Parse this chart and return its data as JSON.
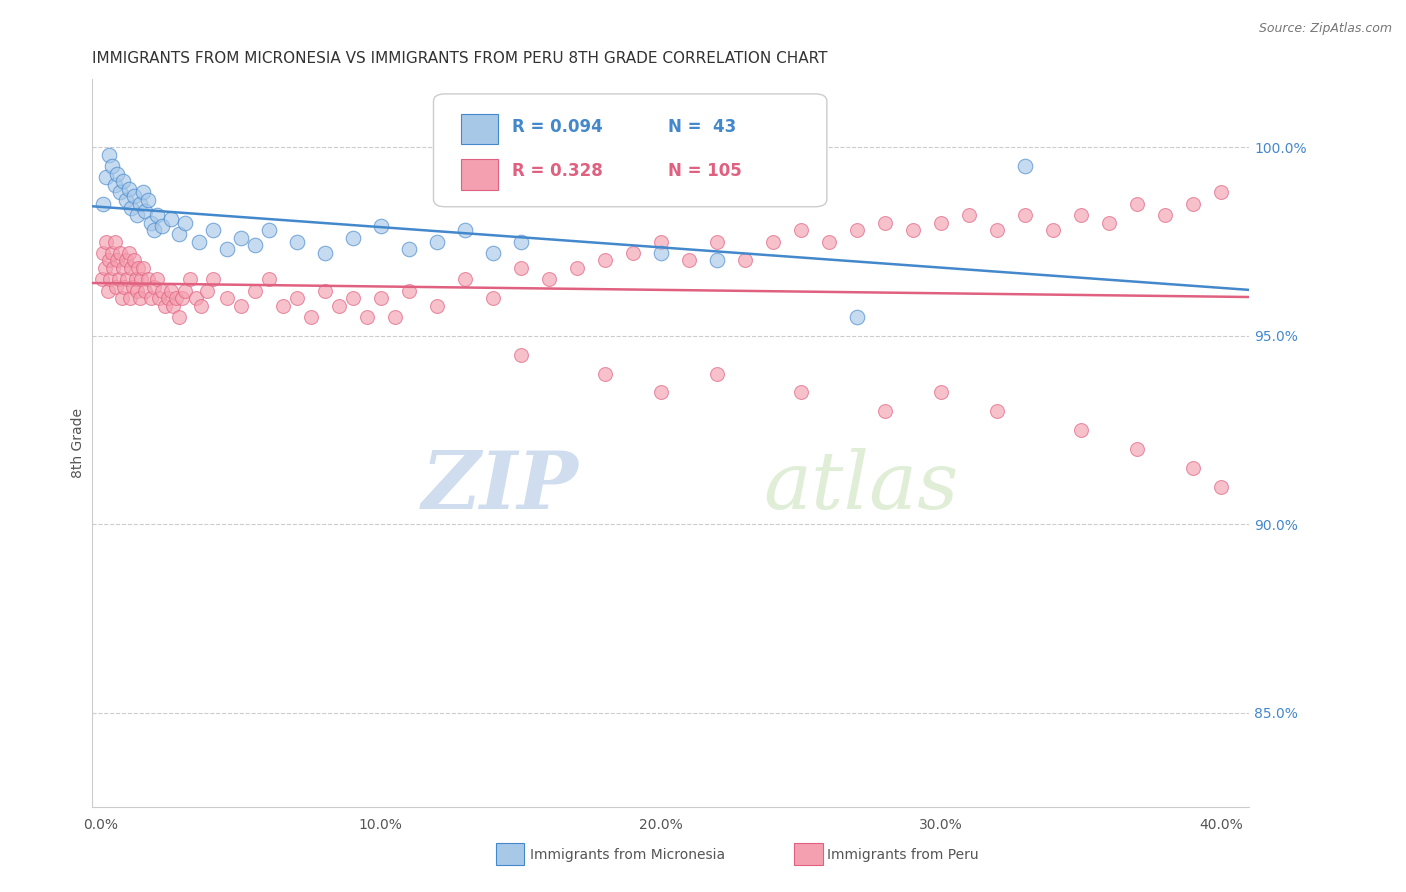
{
  "title": "IMMIGRANTS FROM MICRONESIA VS IMMIGRANTS FROM PERU 8TH GRADE CORRELATION CHART",
  "source": "Source: ZipAtlas.com",
  "ylabel": "8th Grade",
  "x_tick_labels": [
    "0.0%",
    "10.0%",
    "20.0%",
    "30.0%",
    "40.0%"
  ],
  "x_tick_positions": [
    0.0,
    10.0,
    20.0,
    30.0,
    40.0
  ],
  "y_tick_labels_right": [
    "85.0%",
    "90.0%",
    "95.0%",
    "100.0%"
  ],
  "y_tick_positions_right": [
    85.0,
    90.0,
    95.0,
    100.0
  ],
  "ylim": [
    82.5,
    101.8
  ],
  "xlim": [
    -0.3,
    41.0
  ],
  "legend_r1": "R = 0.094",
  "legend_n1": "N =  43",
  "legend_r2": "R = 0.328",
  "legend_n2": "N = 105",
  "color_micro": "#A8C8E8",
  "color_peru": "#F4A0B0",
  "color_line_micro": "#4488CC",
  "color_line_peru": "#E06080",
  "watermark_zip": "ZIP",
  "watermark_atlas": "atlas",
  "title_fontsize": 11,
  "micro_scatter_x": [
    0.1,
    0.2,
    0.3,
    0.4,
    0.5,
    0.6,
    0.7,
    0.8,
    0.9,
    1.0,
    1.1,
    1.2,
    1.3,
    1.4,
    1.5,
    1.6,
    1.7,
    1.8,
    1.9,
    2.0,
    2.2,
    2.5,
    2.8,
    3.0,
    3.5,
    4.0,
    4.5,
    5.0,
    5.5,
    6.0,
    7.0,
    8.0,
    9.0,
    10.0,
    11.0,
    12.0,
    13.0,
    14.0,
    15.0,
    20.0,
    22.0,
    27.0,
    33.0
  ],
  "micro_scatter_y": [
    98.5,
    99.2,
    99.8,
    99.5,
    99.0,
    99.3,
    98.8,
    99.1,
    98.6,
    98.9,
    98.4,
    98.7,
    98.2,
    98.5,
    98.8,
    98.3,
    98.6,
    98.0,
    97.8,
    98.2,
    97.9,
    98.1,
    97.7,
    98.0,
    97.5,
    97.8,
    97.3,
    97.6,
    97.4,
    97.8,
    97.5,
    97.2,
    97.6,
    97.9,
    97.3,
    97.5,
    97.8,
    97.2,
    97.5,
    97.2,
    97.0,
    95.5,
    99.5
  ],
  "peru_scatter_x": [
    0.05,
    0.1,
    0.15,
    0.2,
    0.25,
    0.3,
    0.35,
    0.4,
    0.45,
    0.5,
    0.55,
    0.6,
    0.65,
    0.7,
    0.75,
    0.8,
    0.85,
    0.9,
    0.95,
    1.0,
    1.05,
    1.1,
    1.15,
    1.2,
    1.25,
    1.3,
    1.35,
    1.4,
    1.45,
    1.5,
    1.6,
    1.7,
    1.8,
    1.9,
    2.0,
    2.1,
    2.2,
    2.3,
    2.4,
    2.5,
    2.6,
    2.7,
    2.8,
    2.9,
    3.0,
    3.2,
    3.4,
    3.6,
    3.8,
    4.0,
    4.5,
    5.0,
    5.5,
    6.0,
    6.5,
    7.0,
    7.5,
    8.0,
    8.5,
    9.0,
    9.5,
    10.0,
    10.5,
    11.0,
    12.0,
    13.0,
    14.0,
    15.0,
    16.0,
    17.0,
    18.0,
    19.0,
    20.0,
    21.0,
    22.0,
    23.0,
    24.0,
    25.0,
    26.0,
    27.0,
    28.0,
    29.0,
    30.0,
    31.0,
    32.0,
    33.0,
    34.0,
    35.0,
    36.0,
    37.0,
    38.0,
    39.0,
    40.0,
    15.0,
    18.0,
    20.0,
    22.0,
    25.0,
    28.0,
    30.0,
    32.0,
    35.0,
    37.0,
    39.0,
    40.0
  ],
  "peru_scatter_y": [
    96.5,
    97.2,
    96.8,
    97.5,
    96.2,
    97.0,
    96.5,
    97.2,
    96.8,
    97.5,
    96.3,
    97.0,
    96.5,
    97.2,
    96.0,
    96.8,
    96.3,
    97.0,
    96.5,
    97.2,
    96.0,
    96.8,
    96.3,
    97.0,
    96.5,
    96.2,
    96.8,
    96.0,
    96.5,
    96.8,
    96.2,
    96.5,
    96.0,
    96.3,
    96.5,
    96.0,
    96.2,
    95.8,
    96.0,
    96.2,
    95.8,
    96.0,
    95.5,
    96.0,
    96.2,
    96.5,
    96.0,
    95.8,
    96.2,
    96.5,
    96.0,
    95.8,
    96.2,
    96.5,
    95.8,
    96.0,
    95.5,
    96.2,
    95.8,
    96.0,
    95.5,
    96.0,
    95.5,
    96.2,
    95.8,
    96.5,
    96.0,
    96.8,
    96.5,
    96.8,
    97.0,
    97.2,
    97.5,
    97.0,
    97.5,
    97.0,
    97.5,
    97.8,
    97.5,
    97.8,
    98.0,
    97.8,
    98.0,
    98.2,
    97.8,
    98.2,
    97.8,
    98.2,
    98.0,
    98.5,
    98.2,
    98.5,
    98.8,
    94.5,
    94.0,
    93.5,
    94.0,
    93.5,
    93.0,
    93.5,
    93.0,
    92.5,
    92.0,
    91.5,
    91.0
  ]
}
